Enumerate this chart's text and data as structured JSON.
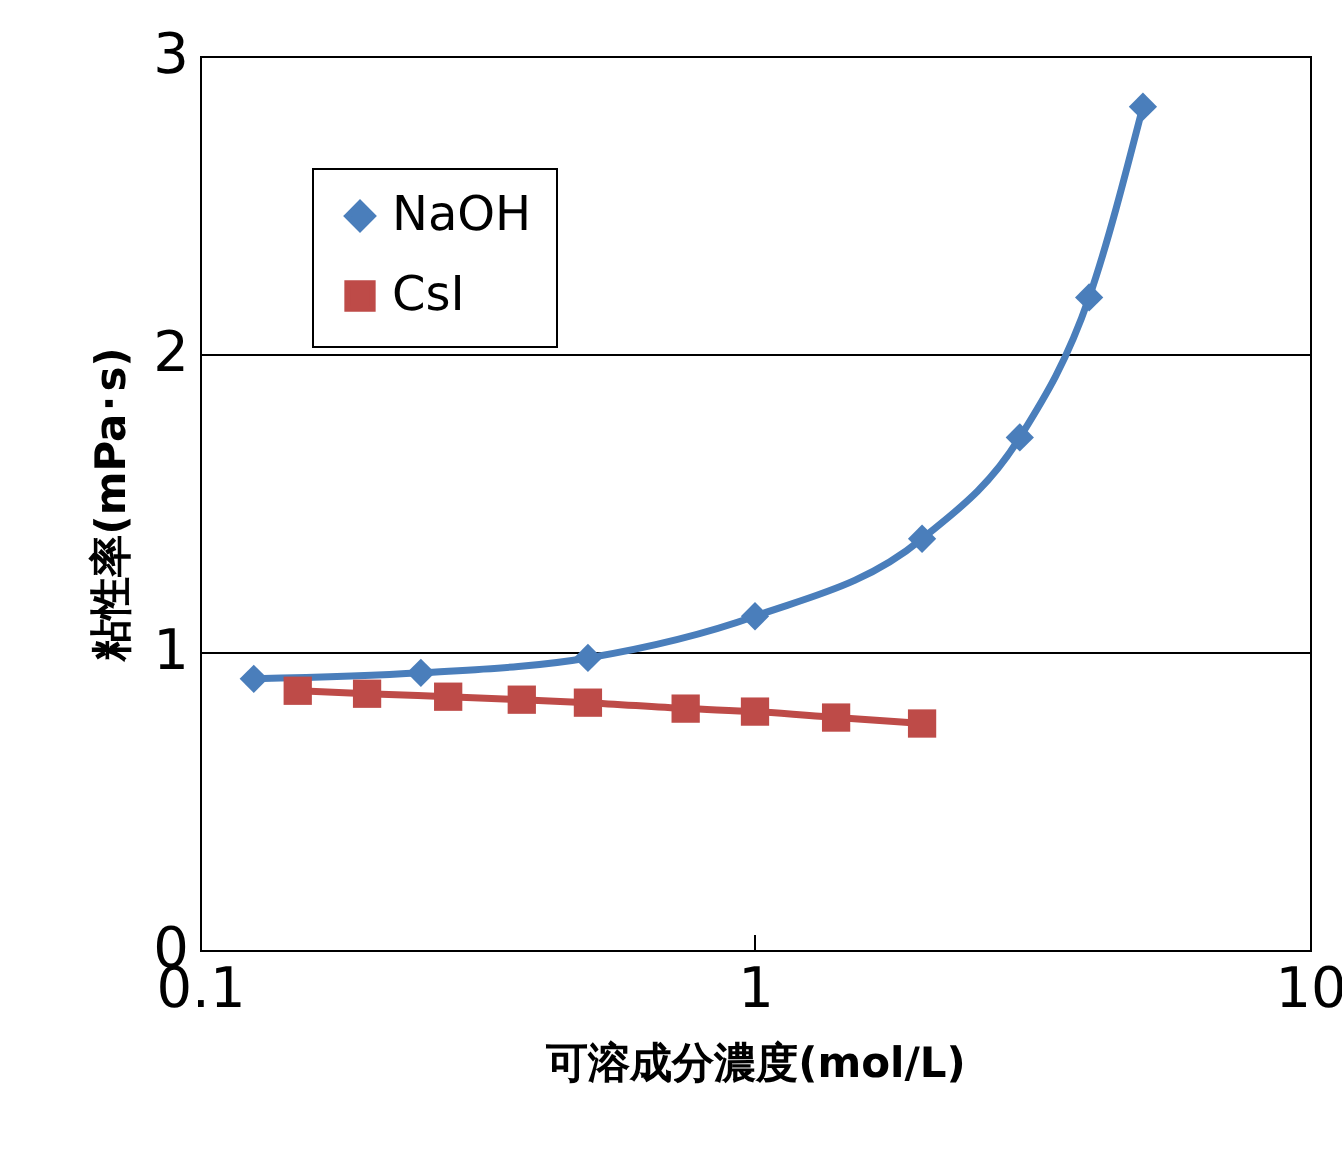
{
  "chart_data": {
    "type": "line",
    "xlabel": "可溶成分濃度(mol/L)",
    "ylabel": "粘性率(mPa･s)",
    "log": "x",
    "xlim": [
      0.1,
      10
    ],
    "xticks": [
      0.1,
      1,
      10
    ],
    "ylim": [
      0,
      3
    ],
    "yticks": [
      0,
      1,
      2,
      3
    ],
    "grid": "y",
    "legend": "top left",
    "line_style": "solid",
    "series": [
      {
        "name": "NaOH",
        "color": "#4a7ebb",
        "marker": "diamond",
        "x": [
          0.125,
          0.25,
          0.5,
          1,
          2,
          3,
          4,
          5
        ],
        "values": [
          0.91,
          0.93,
          0.98,
          1.12,
          1.38,
          1.72,
          2.19,
          2.83
        ]
      },
      {
        "name": "CsI",
        "color": "#be4b48",
        "marker": "square",
        "x": [
          0.15,
          0.2,
          0.28,
          0.38,
          0.5,
          0.75,
          1,
          1.4,
          2
        ],
        "values": [
          0.87,
          0.86,
          0.85,
          0.84,
          0.83,
          0.81,
          0.8,
          0.78,
          0.76
        ]
      }
    ]
  }
}
